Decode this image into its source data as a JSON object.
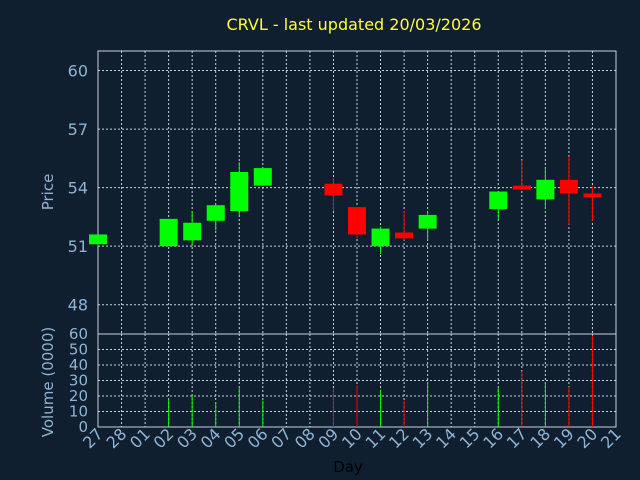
{
  "chart_data": [
    {
      "type": "candlestick",
      "title": "CRVL - last updated 20/03/2026",
      "ylabel": "Price",
      "ylim": [
        46.5,
        61.0
      ],
      "yticks": [
        48,
        51,
        54,
        57,
        60
      ],
      "grid": true,
      "up_color": "#00ff00",
      "down_color": "#ff0000",
      "categories": [
        "27",
        "28",
        "01",
        "02",
        "03",
        "04",
        "05",
        "06",
        "07",
        "08",
        "09",
        "10",
        "11",
        "12",
        "13",
        "14",
        "15",
        "16",
        "17",
        "18",
        "19",
        "20",
        "21"
      ],
      "candles": [
        {
          "x": "27",
          "open": 51.1,
          "high": 51.6,
          "low": 51.0,
          "close": 51.6
        },
        {
          "x": "02",
          "open": 51.0,
          "high": 52.4,
          "low": 51.0,
          "close": 52.4
        },
        {
          "x": "03",
          "open": 51.3,
          "high": 52.8,
          "low": 51.0,
          "close": 52.2
        },
        {
          "x": "04",
          "open": 52.3,
          "high": 53.1,
          "low": 51.8,
          "close": 53.1
        },
        {
          "x": "05",
          "open": 52.8,
          "high": 55.3,
          "low": 52.6,
          "close": 54.8
        },
        {
          "x": "06",
          "open": 54.1,
          "high": 55.0,
          "low": 54.1,
          "close": 55.0
        },
        {
          "x": "09",
          "open": 54.2,
          "high": 54.5,
          "low": 52.8,
          "close": 53.6
        },
        {
          "x": "10",
          "open": 53.0,
          "high": 53.0,
          "low": 51.4,
          "close": 51.6
        },
        {
          "x": "11",
          "open": 51.0,
          "high": 52.0,
          "low": 50.6,
          "close": 51.9
        },
        {
          "x": "12",
          "open": 51.7,
          "high": 52.8,
          "low": 51.3,
          "close": 51.4
        },
        {
          "x": "13",
          "open": 51.9,
          "high": 52.8,
          "low": 51.3,
          "close": 52.6
        },
        {
          "x": "16",
          "open": 52.9,
          "high": 53.8,
          "low": 52.4,
          "close": 53.8
        },
        {
          "x": "17",
          "open": 54.1,
          "high": 55.4,
          "low": 53.9,
          "close": 53.9
        },
        {
          "x": "18",
          "open": 53.4,
          "high": 55.0,
          "low": 52.9,
          "close": 54.4
        },
        {
          "x": "19",
          "open": 54.4,
          "high": 55.6,
          "low": 52.1,
          "close": 53.7
        },
        {
          "x": "20",
          "open": 53.7,
          "high": 54.1,
          "low": 52.3,
          "close": 53.5
        }
      ]
    },
    {
      "type": "bar",
      "ylabel": "Volume (0000)",
      "xlabel": "Day",
      "ylim": [
        0,
        60
      ],
      "yticks": [
        0,
        10,
        20,
        30,
        40,
        50,
        60
      ],
      "grid": true,
      "categories": [
        "27",
        "28",
        "01",
        "02",
        "03",
        "04",
        "05",
        "06",
        "07",
        "08",
        "09",
        "10",
        "11",
        "12",
        "13",
        "14",
        "15",
        "16",
        "17",
        "18",
        "19",
        "20",
        "21"
      ],
      "bars": [
        {
          "x": "27",
          "value": 0,
          "direction": "up"
        },
        {
          "x": "02",
          "value": 18,
          "direction": "up"
        },
        {
          "x": "03",
          "value": 21,
          "direction": "up"
        },
        {
          "x": "04",
          "value": 16,
          "direction": "up"
        },
        {
          "x": "05",
          "value": 26,
          "direction": "up"
        },
        {
          "x": "06",
          "value": 17,
          "direction": "up"
        },
        {
          "x": "09",
          "value": 25,
          "direction": "down"
        },
        {
          "x": "10",
          "value": 27,
          "direction": "down"
        },
        {
          "x": "11",
          "value": 24,
          "direction": "up"
        },
        {
          "x": "12",
          "value": 17,
          "direction": "down"
        },
        {
          "x": "13",
          "value": 29,
          "direction": "up"
        },
        {
          "x": "16",
          "value": 26,
          "direction": "up"
        },
        {
          "x": "17",
          "value": 36,
          "direction": "down"
        },
        {
          "x": "18",
          "value": 29,
          "direction": "up"
        },
        {
          "x": "19",
          "value": 26,
          "direction": "down"
        },
        {
          "x": "20",
          "value": 59,
          "direction": "down"
        }
      ]
    }
  ]
}
